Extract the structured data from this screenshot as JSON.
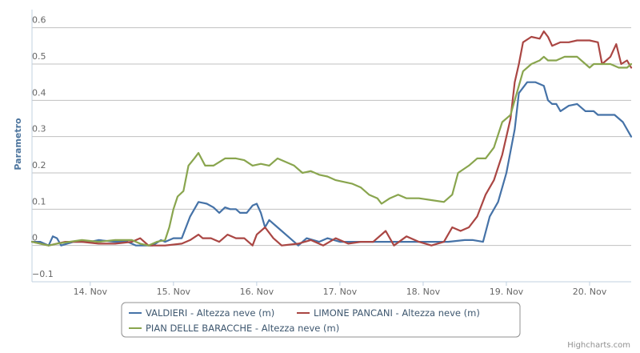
{
  "chart_data": {
    "type": "line",
    "title": "",
    "ylabel": "Parametro",
    "xlabel": "",
    "ylim": [
      -0.1,
      0.65
    ],
    "xlim": [
      13.3,
      20.5
    ],
    "y_ticks": [
      -0.1,
      0,
      0.1,
      0.2,
      0.3,
      0.4,
      0.5,
      0.6
    ],
    "y_tick_labels": [
      "−0.1",
      "0",
      "0.1",
      "0.2",
      "0.3",
      "0.4",
      "0.5",
      "0.6"
    ],
    "x_ticks": [
      14,
      15,
      16,
      17,
      18,
      19,
      20
    ],
    "x_tick_labels": [
      "14. Nov",
      "15. Nov",
      "16. Nov",
      "17. Nov",
      "18. Nov",
      "19. Nov",
      "20. Nov"
    ],
    "grid": "horizontal",
    "legend_position": "bottom",
    "credits": "Highcharts.com",
    "series": [
      {
        "name": "VALDIERI - Altezza neve (m)",
        "color": "#4572a7",
        "points": [
          [
            13.3,
            0.01
          ],
          [
            13.4,
            0.01
          ],
          [
            13.5,
            0.0
          ],
          [
            13.55,
            0.025
          ],
          [
            13.6,
            0.02
          ],
          [
            13.65,
            0.0
          ],
          [
            13.8,
            0.01
          ],
          [
            14.0,
            0.01
          ],
          [
            14.1,
            0.015
          ],
          [
            14.3,
            0.01
          ],
          [
            14.45,
            0.01
          ],
          [
            14.55,
            0.0
          ],
          [
            14.75,
            0.0
          ],
          [
            14.85,
            0.015
          ],
          [
            14.9,
            0.01
          ],
          [
            15.0,
            0.02
          ],
          [
            15.1,
            0.02
          ],
          [
            15.2,
            0.08
          ],
          [
            15.3,
            0.12
          ],
          [
            15.4,
            0.115
          ],
          [
            15.48,
            0.105
          ],
          [
            15.55,
            0.09
          ],
          [
            15.62,
            0.105
          ],
          [
            15.68,
            0.1
          ],
          [
            15.75,
            0.1
          ],
          [
            15.8,
            0.09
          ],
          [
            15.88,
            0.09
          ],
          [
            15.95,
            0.11
          ],
          [
            16.0,
            0.115
          ],
          [
            16.05,
            0.09
          ],
          [
            16.1,
            0.05
          ],
          [
            16.15,
            0.07
          ],
          [
            16.25,
            0.05
          ],
          [
            16.4,
            0.02
          ],
          [
            16.5,
            0.0
          ],
          [
            16.6,
            0.02
          ],
          [
            16.75,
            0.01
          ],
          [
            16.85,
            0.02
          ],
          [
            17.0,
            0.01
          ],
          [
            17.2,
            0.01
          ],
          [
            17.5,
            0.01
          ],
          [
            18.0,
            0.01
          ],
          [
            18.3,
            0.01
          ],
          [
            18.5,
            0.015
          ],
          [
            18.6,
            0.015
          ],
          [
            18.72,
            0.01
          ],
          [
            18.8,
            0.08
          ],
          [
            18.9,
            0.12
          ],
          [
            19.0,
            0.2
          ],
          [
            19.1,
            0.32
          ],
          [
            19.15,
            0.42
          ],
          [
            19.25,
            0.45
          ],
          [
            19.35,
            0.45
          ],
          [
            19.45,
            0.44
          ],
          [
            19.5,
            0.4
          ],
          [
            19.55,
            0.39
          ],
          [
            19.6,
            0.39
          ],
          [
            19.65,
            0.37
          ],
          [
            19.75,
            0.385
          ],
          [
            19.85,
            0.39
          ],
          [
            19.95,
            0.37
          ],
          [
            20.05,
            0.37
          ],
          [
            20.1,
            0.36
          ],
          [
            20.3,
            0.36
          ],
          [
            20.4,
            0.34
          ],
          [
            20.5,
            0.3
          ]
        ]
      },
      {
        "name": "LIMONE PANCANI - Altezza neve (m)",
        "color": "#aa4643",
        "points": [
          [
            13.3,
            0.01
          ],
          [
            13.5,
            0.0
          ],
          [
            13.7,
            0.01
          ],
          [
            13.9,
            0.01
          ],
          [
            14.1,
            0.005
          ],
          [
            14.3,
            0.005
          ],
          [
            14.5,
            0.01
          ],
          [
            14.6,
            0.02
          ],
          [
            14.7,
            0.0
          ],
          [
            14.9,
            0.0
          ],
          [
            15.1,
            0.005
          ],
          [
            15.2,
            0.015
          ],
          [
            15.3,
            0.03
          ],
          [
            15.35,
            0.02
          ],
          [
            15.45,
            0.02
          ],
          [
            15.55,
            0.01
          ],
          [
            15.65,
            0.03
          ],
          [
            15.75,
            0.02
          ],
          [
            15.85,
            0.02
          ],
          [
            15.95,
            0.0
          ],
          [
            16.0,
            0.03
          ],
          [
            16.1,
            0.05
          ],
          [
            16.2,
            0.02
          ],
          [
            16.3,
            0.0
          ],
          [
            16.5,
            0.005
          ],
          [
            16.65,
            0.015
          ],
          [
            16.8,
            0.0
          ],
          [
            16.95,
            0.02
          ],
          [
            17.1,
            0.005
          ],
          [
            17.25,
            0.01
          ],
          [
            17.4,
            0.01
          ],
          [
            17.55,
            0.04
          ],
          [
            17.65,
            0.0
          ],
          [
            17.8,
            0.025
          ],
          [
            17.95,
            0.01
          ],
          [
            18.1,
            0.0
          ],
          [
            18.25,
            0.01
          ],
          [
            18.35,
            0.05
          ],
          [
            18.45,
            0.04
          ],
          [
            18.55,
            0.05
          ],
          [
            18.65,
            0.08
          ],
          [
            18.75,
            0.14
          ],
          [
            18.85,
            0.18
          ],
          [
            18.95,
            0.25
          ],
          [
            19.05,
            0.35
          ],
          [
            19.1,
            0.45
          ],
          [
            19.15,
            0.5
          ],
          [
            19.2,
            0.56
          ],
          [
            19.3,
            0.575
          ],
          [
            19.4,
            0.57
          ],
          [
            19.45,
            0.59
          ],
          [
            19.5,
            0.575
          ],
          [
            19.55,
            0.55
          ],
          [
            19.65,
            0.56
          ],
          [
            19.75,
            0.56
          ],
          [
            19.85,
            0.565
          ],
          [
            20.0,
            0.565
          ],
          [
            20.1,
            0.56
          ],
          [
            20.15,
            0.5
          ],
          [
            20.25,
            0.52
          ],
          [
            20.32,
            0.555
          ],
          [
            20.38,
            0.5
          ],
          [
            20.45,
            0.51
          ],
          [
            20.5,
            0.49
          ]
        ]
      },
      {
        "name": "PIAN DELLE BARACCHE - Altezza neve (m)",
        "color": "#89a54e",
        "points": [
          [
            13.3,
            0.01
          ],
          [
            13.4,
            0.005
          ],
          [
            13.5,
            0.0
          ],
          [
            13.6,
            0.005
          ],
          [
            13.75,
            0.01
          ],
          [
            13.9,
            0.015
          ],
          [
            14.1,
            0.01
          ],
          [
            14.3,
            0.015
          ],
          [
            14.5,
            0.015
          ],
          [
            14.6,
            0.005
          ],
          [
            14.7,
            0.0
          ],
          [
            14.8,
            0.01
          ],
          [
            14.9,
            0.015
          ],
          [
            14.95,
            0.05
          ],
          [
            15.0,
            0.1
          ],
          [
            15.05,
            0.135
          ],
          [
            15.12,
            0.15
          ],
          [
            15.18,
            0.22
          ],
          [
            15.25,
            0.24
          ],
          [
            15.3,
            0.255
          ],
          [
            15.38,
            0.22
          ],
          [
            15.48,
            0.22
          ],
          [
            15.55,
            0.23
          ],
          [
            15.62,
            0.24
          ],
          [
            15.75,
            0.24
          ],
          [
            15.85,
            0.235
          ],
          [
            15.95,
            0.22
          ],
          [
            16.05,
            0.225
          ],
          [
            16.15,
            0.22
          ],
          [
            16.25,
            0.24
          ],
          [
            16.35,
            0.23
          ],
          [
            16.45,
            0.22
          ],
          [
            16.55,
            0.2
          ],
          [
            16.65,
            0.205
          ],
          [
            16.75,
            0.195
          ],
          [
            16.85,
            0.19
          ],
          [
            16.95,
            0.18
          ],
          [
            17.05,
            0.175
          ],
          [
            17.15,
            0.17
          ],
          [
            17.25,
            0.16
          ],
          [
            17.35,
            0.14
          ],
          [
            17.45,
            0.13
          ],
          [
            17.5,
            0.115
          ],
          [
            17.6,
            0.13
          ],
          [
            17.7,
            0.14
          ],
          [
            17.8,
            0.13
          ],
          [
            17.95,
            0.13
          ],
          [
            18.1,
            0.125
          ],
          [
            18.25,
            0.12
          ],
          [
            18.35,
            0.14
          ],
          [
            18.42,
            0.2
          ],
          [
            18.55,
            0.22
          ],
          [
            18.65,
            0.24
          ],
          [
            18.75,
            0.24
          ],
          [
            18.85,
            0.27
          ],
          [
            18.95,
            0.34
          ],
          [
            19.05,
            0.36
          ],
          [
            19.1,
            0.4
          ],
          [
            19.2,
            0.48
          ],
          [
            19.3,
            0.5
          ],
          [
            19.4,
            0.51
          ],
          [
            19.45,
            0.52
          ],
          [
            19.5,
            0.51
          ],
          [
            19.6,
            0.51
          ],
          [
            19.7,
            0.52
          ],
          [
            19.85,
            0.52
          ],
          [
            19.95,
            0.5
          ],
          [
            20.0,
            0.49
          ],
          [
            20.05,
            0.5
          ],
          [
            20.25,
            0.5
          ],
          [
            20.35,
            0.49
          ],
          [
            20.45,
            0.49
          ],
          [
            20.5,
            0.5
          ]
        ]
      }
    ]
  }
}
